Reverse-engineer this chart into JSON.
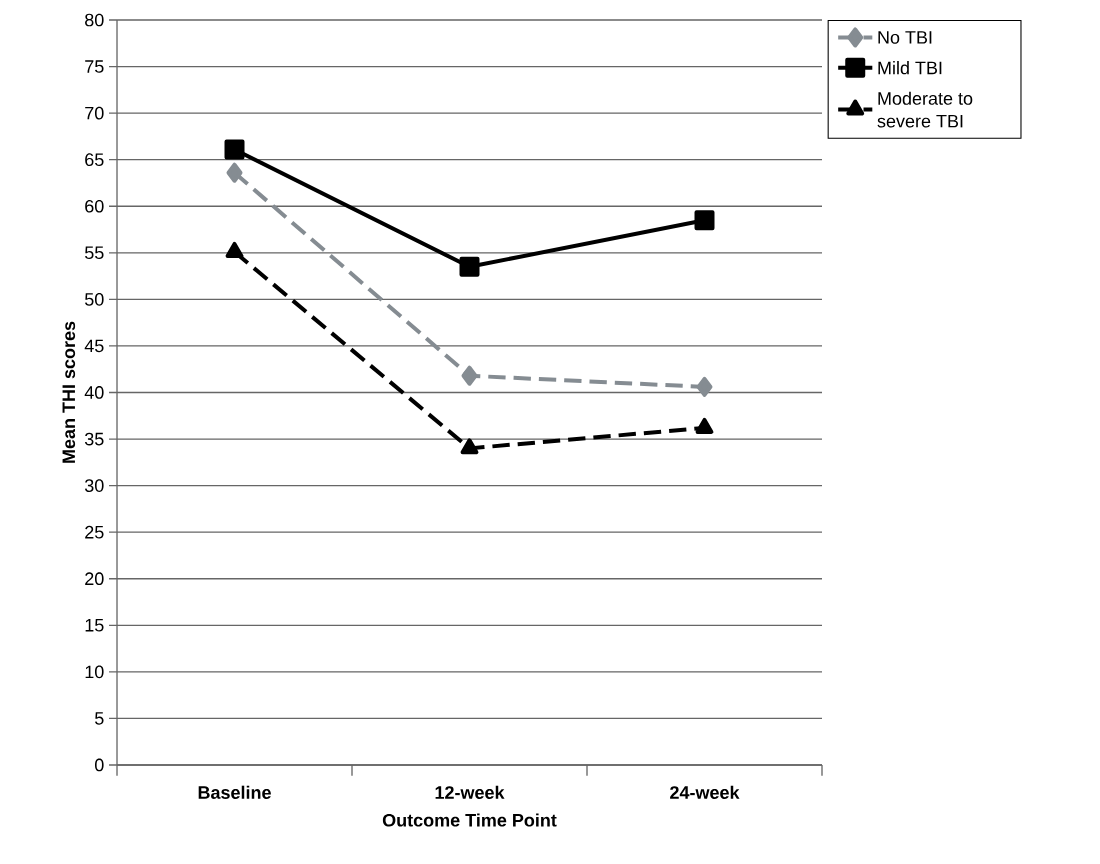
{
  "chart_data": {
    "type": "line",
    "xlabel": "Outcome Time Point",
    "ylabel": "Mean THI scores",
    "categories": [
      "Baseline",
      "12-week",
      "24-week"
    ],
    "series": [
      {
        "name": "No TBI",
        "color": "#858c92",
        "values": [
          63.6,
          41.8,
          40.6
        ],
        "marker": "diamond",
        "line_style": "dashed"
      },
      {
        "name": "Mild TBI",
        "color": "#000000",
        "values": [
          66.1,
          53.5,
          58.5
        ],
        "marker": "square",
        "line_style": "solid"
      },
      {
        "name": "Moderate to severe TBI",
        "color": "#000000",
        "values": [
          55.1,
          34.0,
          36.2
        ],
        "marker": "triangle",
        "line_style": "dashed"
      }
    ],
    "ylim": [
      0,
      80
    ],
    "yticks": [
      0,
      5,
      10,
      15,
      20,
      25,
      30,
      35,
      40,
      45,
      50,
      55,
      60,
      65,
      70,
      75,
      80
    ],
    "grid": "y",
    "legend": "top right"
  }
}
